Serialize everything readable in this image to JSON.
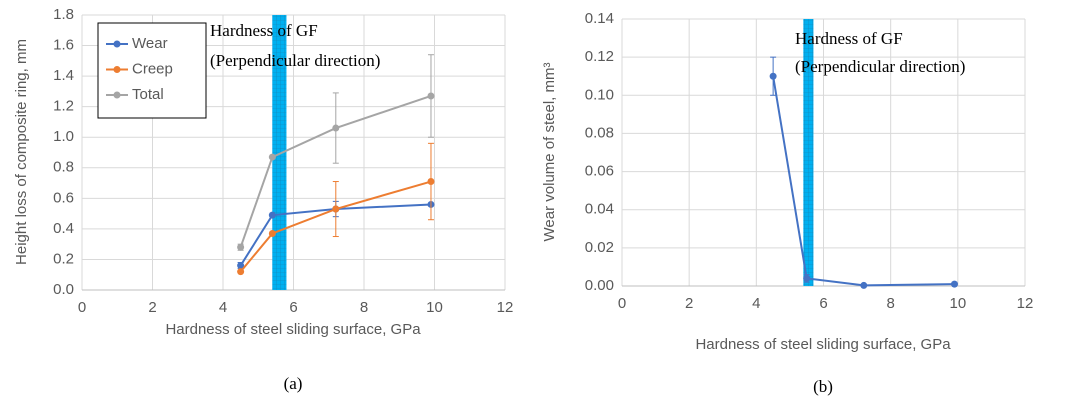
{
  "chart_data": [
    {
      "type": "line",
      "xlabel": "Hardness of steel sliding surface, GPa",
      "ylabel": "Height loss of composite ring, mm",
      "caption": "(a)",
      "annotations": [
        "Hardness of GF",
        "(Perpendicular direction)"
      ],
      "band": [
        5.4,
        5.8
      ],
      "band_color": "#00b0f0",
      "xlim": [
        0,
        12
      ],
      "xticks": [
        0,
        2,
        4,
        6,
        8,
        10,
        12
      ],
      "ylim": [
        0,
        1.8
      ],
      "yticks": [
        {
          "value": 0,
          "label": "0.0"
        },
        0.2,
        0.4,
        0.6,
        0.8,
        {
          "value": 1,
          "label": "1.0"
        },
        1.2,
        1.4,
        1.6,
        1.8
      ],
      "grid": true,
      "legend": "upper left",
      "x": [
        4.5,
        5.4,
        7.2,
        9.9
      ],
      "series": [
        {
          "name": "Wear",
          "color": "#4472c4",
          "values": [
            0.16,
            0.49,
            0.53,
            0.56
          ],
          "errors": [
            0.02,
            0,
            0.05,
            0
          ]
        },
        {
          "name": "Creep",
          "color": "#ed7d31",
          "values": [
            0.12,
            0.37,
            0.53,
            0.71
          ],
          "errors": [
            0,
            0,
            0.18,
            0.25
          ]
        },
        {
          "name": "Total",
          "color": "#a5a5a5",
          "values": [
            0.28,
            0.87,
            1.06,
            1.27
          ],
          "errors": [
            0.02,
            0,
            0.23,
            0.27
          ]
        }
      ]
    },
    {
      "type": "line",
      "xlabel": "Hardness of steel sliding surface, GPa",
      "ylabel": "Wear volume of steel, mm³",
      "caption": "(b)",
      "annotations": [
        "Hardness of GF",
        "(Perpendicular direction)"
      ],
      "band": [
        5.4,
        5.7
      ],
      "band_color": "#00b0f0",
      "xlim": [
        0,
        12
      ],
      "xticks": [
        0,
        2,
        4,
        6,
        8,
        10,
        12
      ],
      "ylim": [
        0,
        0.14
      ],
      "yticks": [
        {
          "value": 0,
          "label": "0.00"
        },
        0.02,
        0.04,
        0.06,
        0.08,
        {
          "value": 0.1,
          "label": "0.10"
        },
        0.12,
        0.14
      ],
      "grid": true,
      "x": [
        4.5,
        5.5,
        7.2,
        9.9
      ],
      "series": [
        {
          "color": "#4472c4",
          "values": [
            0.11,
            0.004,
            0.0003,
            0.001
          ],
          "errors": [
            0.01,
            0.002,
            0,
            0
          ]
        }
      ]
    }
  ]
}
